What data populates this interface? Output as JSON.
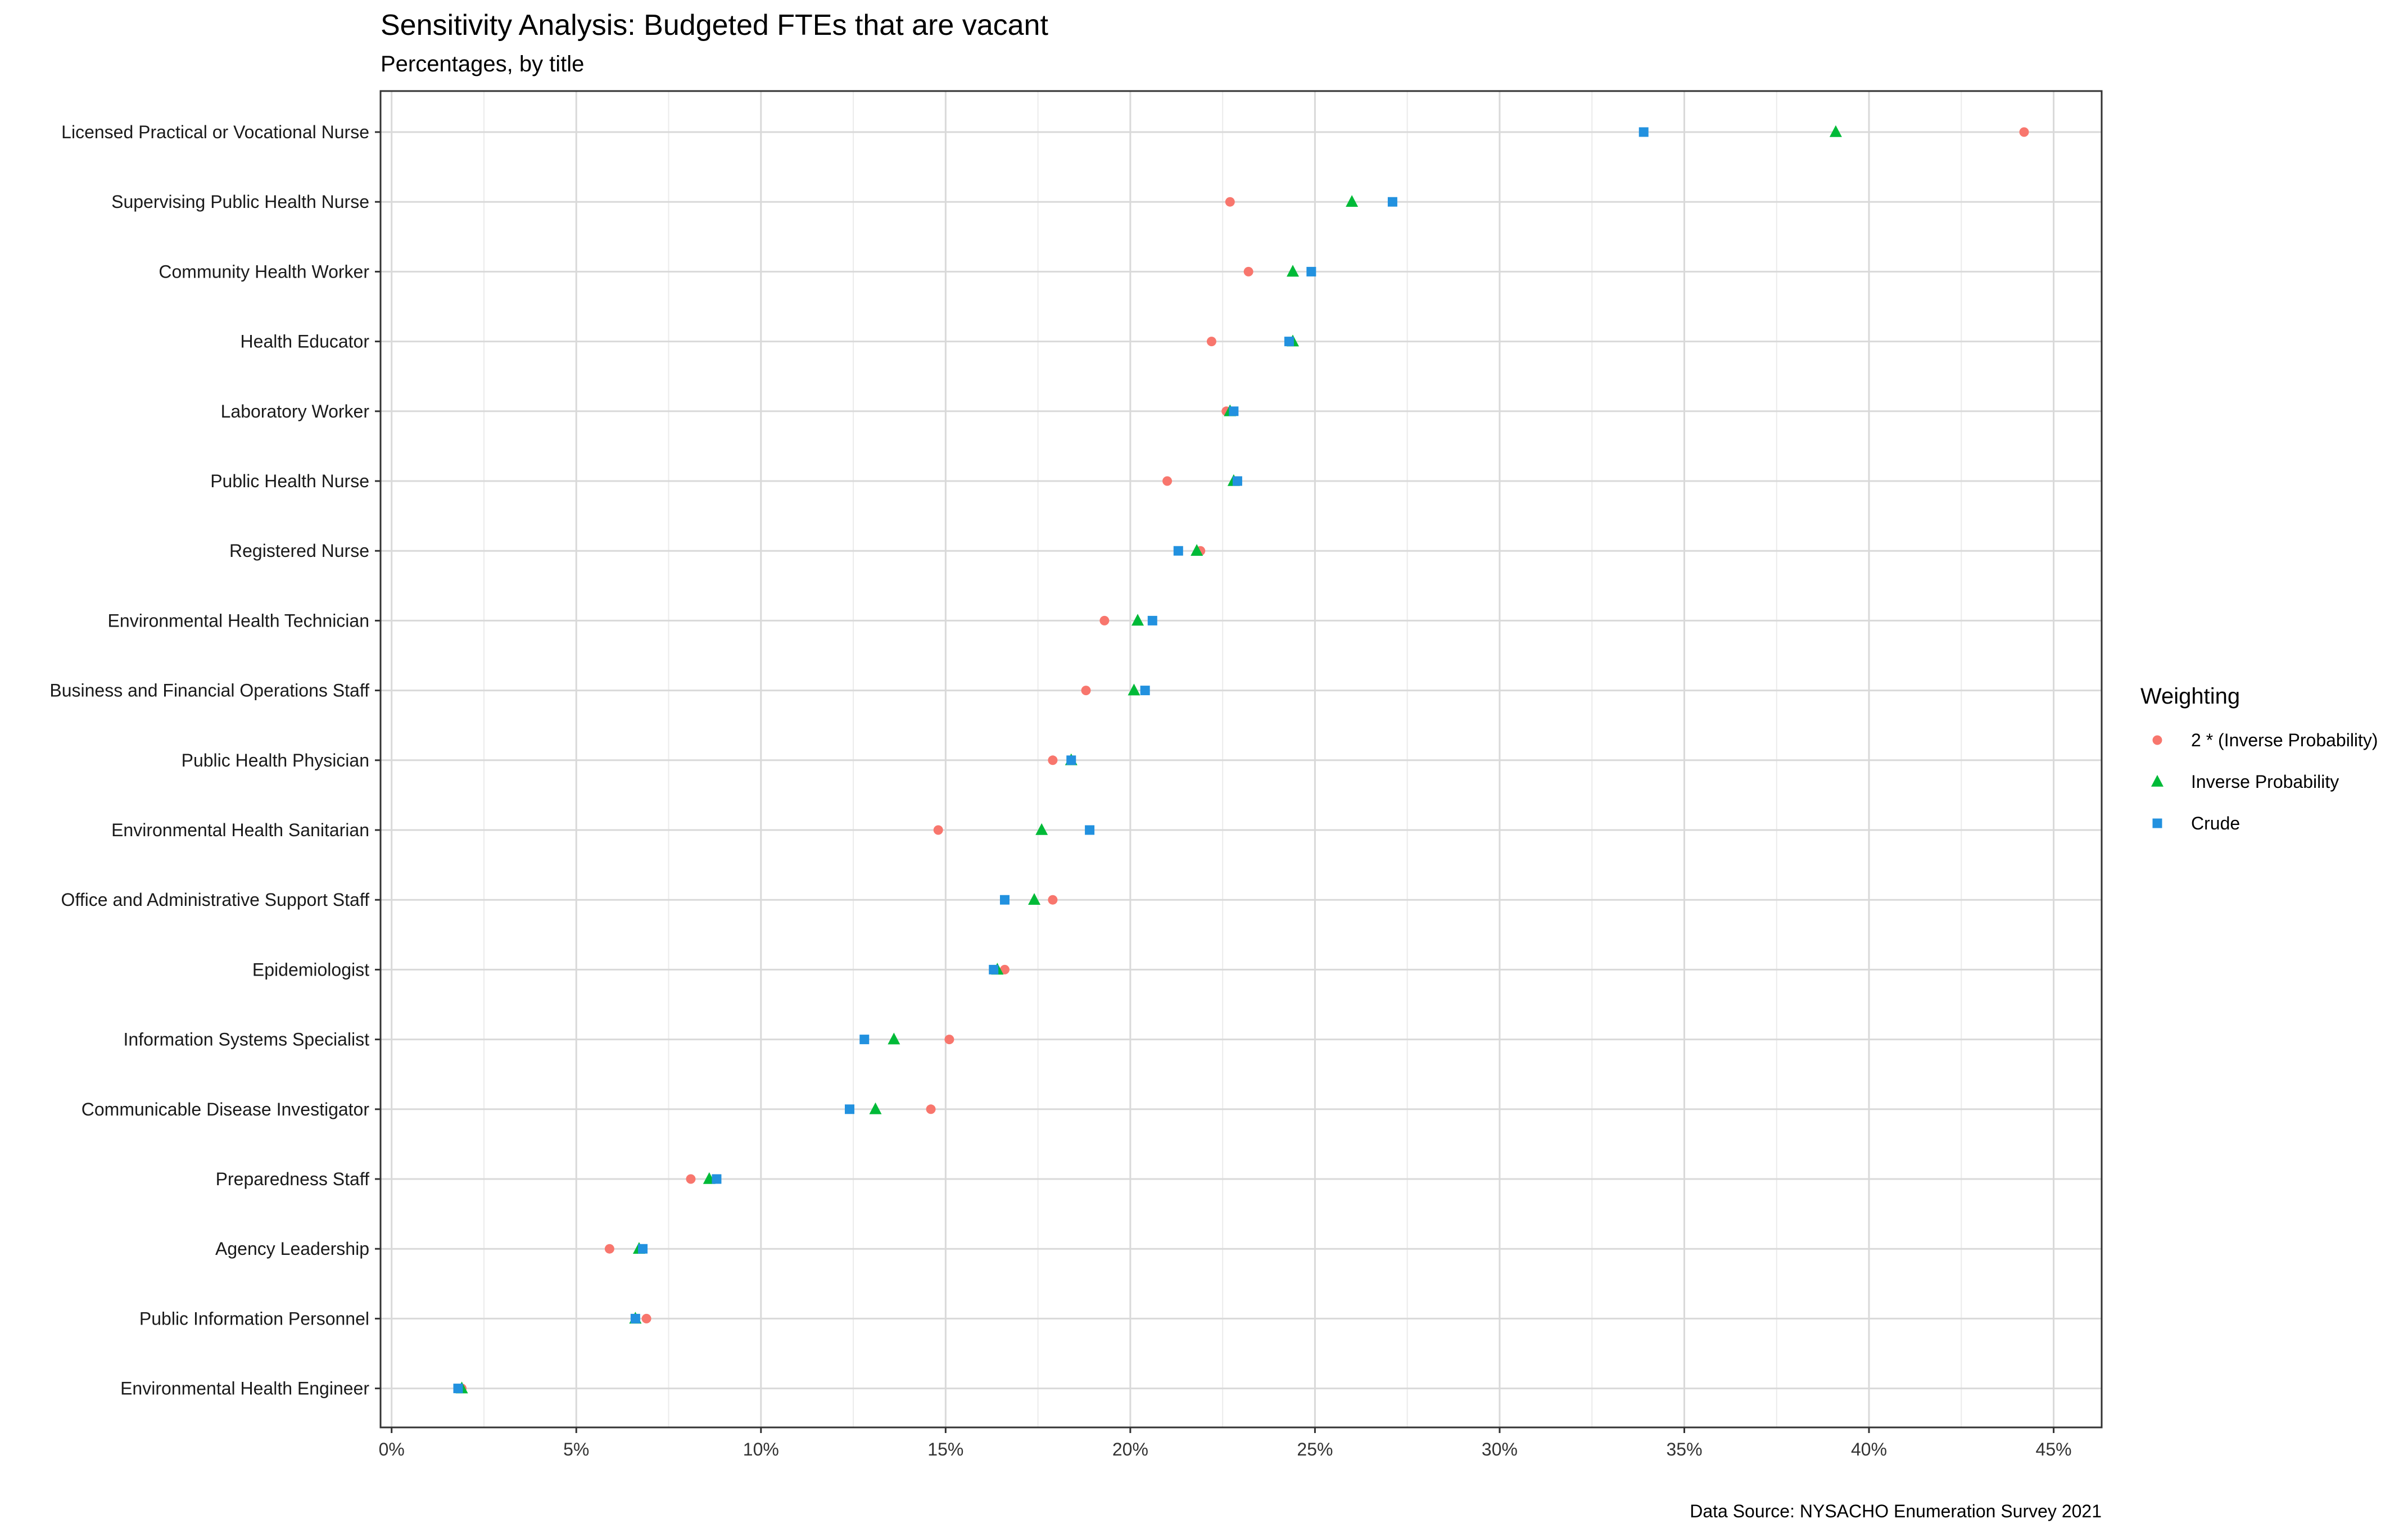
{
  "chart_data": {
    "type": "scatter",
    "title": "Sensitivity Analysis: Budgeted FTEs that are vacant",
    "subtitle": "Percentages, by title",
    "caption": "Data Source: NYSACHO Enumeration Survey 2021",
    "xlabel": "",
    "ylabel": "",
    "xlim": [
      -0.3,
      46.3
    ],
    "x_ticks": [
      0,
      5,
      10,
      15,
      20,
      25,
      30,
      35,
      40,
      45
    ],
    "x_tick_labels": [
      "0%",
      "5%",
      "10%",
      "15%",
      "20%",
      "25%",
      "30%",
      "35%",
      "40%",
      "45%"
    ],
    "grid": true,
    "legend": {
      "title": "Weighting",
      "position": "right"
    },
    "categories": [
      "Licensed Practical or Vocational Nurse",
      "Supervising Public Health Nurse",
      "Community Health Worker",
      "Health Educator",
      "Laboratory Worker",
      "Public Health Nurse",
      "Registered Nurse",
      "Environmental Health Technician",
      "Business and Financial Operations Staff",
      "Public Health Physician",
      "Environmental Health Sanitarian",
      "Office and Administrative Support Staff",
      "Epidemiologist",
      "Information Systems Specialist",
      "Communicable Disease Investigator",
      "Preparedness Staff",
      "Agency Leadership",
      "Public Information Personnel",
      "Environmental Health Engineer"
    ],
    "series": [
      {
        "name": "2 * (Inverse Probability)",
        "color": "#F8766D",
        "shape": "circle",
        "values": [
          44.2,
          22.7,
          23.2,
          22.2,
          22.6,
          21.0,
          21.9,
          19.3,
          18.8,
          17.9,
          14.8,
          17.9,
          16.6,
          15.1,
          14.6,
          8.1,
          5.9,
          6.9,
          1.9
        ]
      },
      {
        "name": "Inverse Probability",
        "color": "#00BA38",
        "shape": "triangle",
        "values": [
          39.1,
          26.0,
          24.4,
          24.4,
          22.7,
          22.8,
          21.8,
          20.2,
          20.1,
          18.4,
          17.6,
          17.4,
          16.4,
          13.6,
          13.1,
          8.6,
          6.7,
          6.6,
          1.9
        ]
      },
      {
        "name": "Crude",
        "color": "#2291DF",
        "shape": "square",
        "values": [
          33.9,
          27.1,
          24.9,
          24.3,
          22.8,
          22.9,
          21.3,
          20.6,
          20.4,
          18.4,
          18.9,
          16.6,
          16.3,
          12.8,
          12.4,
          8.8,
          6.8,
          6.6,
          1.8
        ]
      }
    ]
  }
}
